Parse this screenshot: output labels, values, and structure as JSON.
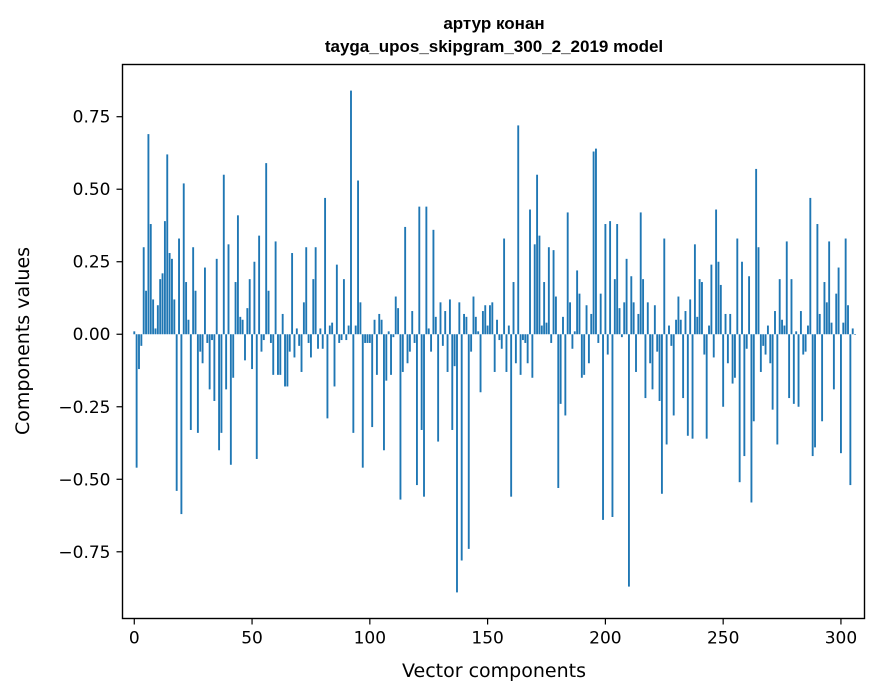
{
  "chart_data": {
    "type": "bar",
    "title": "артур конан",
    "subtitle": "tayga_upos_skipgram_300_2_2019 model",
    "xlabel": "Vector components",
    "ylabel": "Components values",
    "xlim": [
      -5,
      310
    ],
    "ylim": [
      -0.98,
      0.93
    ],
    "x_ticks": [
      0,
      50,
      100,
      150,
      200,
      250,
      300
    ],
    "y_ticks": [
      -0.75,
      -0.5,
      -0.25,
      0.0,
      0.25,
      0.5,
      0.75
    ],
    "x_tick_labels": [
      "0",
      "50",
      "100",
      "150",
      "200",
      "250",
      "300"
    ],
    "y_tick_labels": [
      "−0.75",
      "−0.50",
      "−0.25",
      "0.00",
      "0.25",
      "0.50",
      "0.75"
    ],
    "bar_color": "#1f77b4",
    "grid": false,
    "x_start": 0,
    "values": [
      0.01,
      -0.46,
      -0.12,
      -0.04,
      0.3,
      0.15,
      0.69,
      0.38,
      0.12,
      0.02,
      0.1,
      0.19,
      0.21,
      0.39,
      0.62,
      0.28,
      0.26,
      0.12,
      -0.54,
      0.33,
      -0.62,
      0.52,
      0.18,
      0.05,
      -0.33,
      0.3,
      0.15,
      -0.34,
      -0.06,
      -0.1,
      0.23,
      -0.03,
      -0.19,
      -0.02,
      -0.23,
      0.26,
      -0.4,
      -0.34,
      0.55,
      -0.19,
      0.31,
      -0.45,
      -0.15,
      0.18,
      0.41,
      0.06,
      0.05,
      -0.09,
      0.09,
      0.19,
      -0.12,
      0.25,
      -0.43,
      0.34,
      -0.06,
      -0.02,
      0.59,
      0.15,
      -0.03,
      -0.14,
      0.32,
      -0.14,
      -0.14,
      0.07,
      -0.18,
      -0.18,
      -0.06,
      0.28,
      -0.08,
      0.02,
      -0.04,
      -0.13,
      0.11,
      0.3,
      -0.03,
      -0.08,
      0.19,
      0.3,
      -0.05,
      0.02,
      -0.05,
      0.47,
      -0.29,
      0.03,
      0.04,
      -0.18,
      0.24,
      -0.03,
      -0.02,
      0.19,
      -0.02,
      0.03,
      0.84,
      -0.34,
      0.03,
      0.53,
      0.11,
      -0.46,
      -0.03,
      -0.03,
      -0.03,
      -0.32,
      0.05,
      -0.14,
      0.07,
      0.05,
      -0.4,
      -0.16,
      0.01,
      -0.14,
      -0.01,
      0.13,
      0.09,
      -0.57,
      -0.13,
      0.37,
      -0.1,
      -0.06,
      0.08,
      -0.03,
      -0.52,
      0.44,
      -0.33,
      -0.56,
      0.44,
      0.02,
      -0.06,
      0.36,
      0.06,
      -0.37,
      0.11,
      -0.04,
      0.08,
      -0.13,
      0.12,
      -0.33,
      -0.11,
      -0.89,
      0.11,
      -0.78,
      0.07,
      0.06,
      -0.74,
      -0.06,
      0.13,
      0.06,
      0.01,
      -0.2,
      0.08,
      0.1,
      0.03,
      0.1,
      0.11,
      -0.13,
      0.05,
      -0.02,
      -0.05,
      0.33,
      -0.13,
      0.03,
      -0.56,
      0.18,
      -0.1,
      0.72,
      -0.14,
      -0.02,
      -0.03,
      -0.1,
      0.43,
      -0.15,
      0.31,
      0.55,
      0.34,
      0.03,
      0.18,
      0.04,
      0.3,
      -0.03,
      0.29,
      0.13,
      -0.53,
      -0.24,
      0.06,
      -0.28,
      0.42,
      0.11,
      -0.05,
      0.01,
      0.22,
      0.14,
      -0.15,
      -0.14,
      0.1,
      -0.1,
      0.07,
      0.63,
      0.64,
      -0.03,
      0.14,
      -0.64,
      0.38,
      -0.07,
      0.39,
      -0.63,
      0.19,
      0.38,
      0.09,
      -0.01,
      0.11,
      0.26,
      -0.87,
      0.2,
      0.11,
      -0.13,
      0.07,
      0.42,
      0.19,
      -0.22,
      0.11,
      -0.1,
      -0.19,
      0.1,
      -0.06,
      -0.23,
      -0.55,
      0.33,
      -0.38,
      0.03,
      -0.04,
      -0.28,
      0.05,
      0.13,
      0.05,
      -0.22,
      0.08,
      -0.35,
      0.12,
      -0.36,
      0.31,
      0.06,
      0.19,
      0.18,
      -0.07,
      -0.36,
      0.03,
      0.24,
      -0.08,
      0.43,
      0.25,
      0.17,
      -0.25,
      0.07,
      -0.1,
      0.07,
      -0.17,
      -0.15,
      0.33,
      -0.51,
      0.25,
      -0.42,
      -0.05,
      0.2,
      -0.58,
      -0.3,
      0.57,
      0.3,
      -0.13,
      -0.04,
      -0.07,
      0.03,
      -0.1,
      -0.26,
      0.08,
      -0.38,
      0.19,
      0.05,
      0.03,
      0.32,
      -0.22,
      0.19,
      -0.24,
      0.01,
      -0.25,
      0.08,
      -0.07,
      -0.06,
      0.03,
      0.47,
      -0.42,
      -0.39,
      0.38,
      0.07,
      -0.3,
      0.18,
      0.11,
      0.32,
      0.04,
      -0.19,
      0.14,
      0.23,
      -0.41,
      0.04,
      0.33,
      0.1,
      -0.52,
      0.02,
      0.0
    ]
  }
}
